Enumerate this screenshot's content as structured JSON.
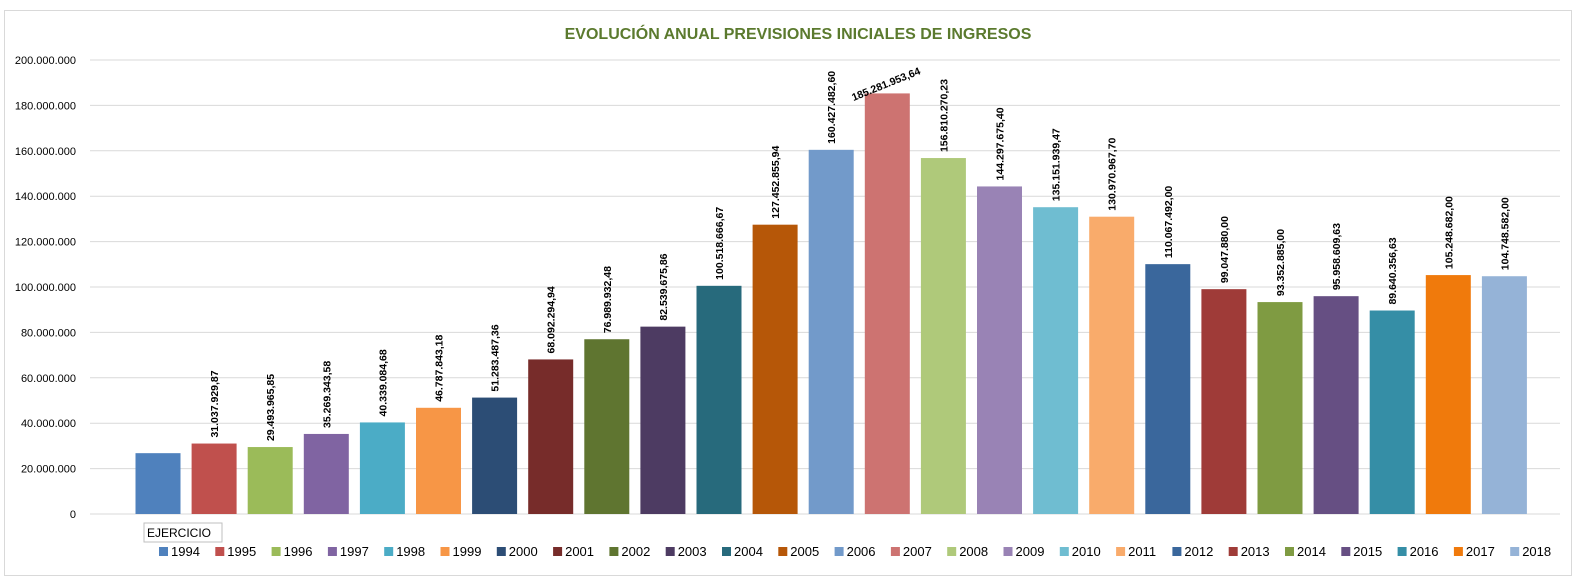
{
  "chart_data": {
    "type": "bar",
    "title": "EVOLUCIÓN ANUAL PREVISIONES INICIALES DE INGRESOS",
    "axis_field_label": "EJERCICIO",
    "ylim": [
      0,
      200000000
    ],
    "y_ticks": [
      0,
      20000000,
      40000000,
      60000000,
      80000000,
      100000000,
      120000000,
      140000000,
      160000000,
      180000000,
      200000000
    ],
    "y_tick_labels": [
      "0",
      "20.000.000",
      "40.000.000",
      "60.000.000",
      "80.000.000",
      "100.000.000",
      "120.000.000",
      "140.000.000",
      "160.000.000",
      "180.000.000",
      "200.000.000"
    ],
    "grid": true,
    "legend": "bottom",
    "series": [
      {
        "name": "1994",
        "value": 26800000,
        "label": "",
        "color": "#4f81bd"
      },
      {
        "name": "1995",
        "value": 31037929.87,
        "label": "31.037.929,87",
        "color": "#c0504d"
      },
      {
        "name": "1996",
        "value": 29493965.85,
        "label": "29.493.965,85",
        "color": "#9bbb59"
      },
      {
        "name": "1997",
        "value": 35269343.58,
        "label": "35.269.343,58",
        "color": "#8064a2"
      },
      {
        "name": "1998",
        "value": 40339084.68,
        "label": "40.339.084,68",
        "color": "#4bacc6"
      },
      {
        "name": "1999",
        "value": 46787843.18,
        "label": "46.787.843,18",
        "color": "#f79646"
      },
      {
        "name": "2000",
        "value": 51283487.36,
        "label": "51.283.487,36",
        "color": "#2c4d75"
      },
      {
        "name": "2001",
        "value": 68092294.94,
        "label": "68.092.294,94",
        "color": "#772c2a"
      },
      {
        "name": "2002",
        "value": 76989932.48,
        "label": "76.989.932,48",
        "color": "#5f7530"
      },
      {
        "name": "2003",
        "value": 82539675.86,
        "label": "82.539.675,86",
        "color": "#4d3b62"
      },
      {
        "name": "2004",
        "value": 100518666.67,
        "label": "100.518.666,67",
        "color": "#276a7c"
      },
      {
        "name": "2005",
        "value": 127452855.94,
        "label": "127.452.855,94",
        "color": "#b65708"
      },
      {
        "name": "2006",
        "value": 160427482.6,
        "label": "160.427.482,60",
        "color": "#729aca"
      },
      {
        "name": "2007",
        "value": 185281953.64,
        "label": "185.281.953,64",
        "color": "#cd7371"
      },
      {
        "name": "2008",
        "value": 156810270.23,
        "label": "156.810.270,23",
        "color": "#afc97a"
      },
      {
        "name": "2009",
        "value": 144297675.4,
        "label": "144.297.675,40",
        "color": "#9983b5"
      },
      {
        "name": "2010",
        "value": 135151939.47,
        "label": "135.151.939,47",
        "color": "#6fbdd1"
      },
      {
        "name": "2011",
        "value": 130970967.7,
        "label": "130.970.967,70",
        "color": "#f9ab6b"
      },
      {
        "name": "2012",
        "value": 110067492.0,
        "label": "110.067.492,00",
        "color": "#3a679c"
      },
      {
        "name": "2013",
        "value": 99047880.0,
        "label": "99.047.880,00",
        "color": "#9f3b38"
      },
      {
        "name": "2014",
        "value": 93352885.0,
        "label": "93.352.885,00",
        "color": "#7f9b42"
      },
      {
        "name": "2015",
        "value": 95958609.63,
        "label": "95.958.609,63",
        "color": "#664f83"
      },
      {
        "name": "2016",
        "value": 89640356.63,
        "label": "89.640.356,63",
        "color": "#358ea6"
      },
      {
        "name": "2017",
        "value": 105248682.0,
        "label": "105.248.682,00",
        "color": "#f07a0c"
      },
      {
        "name": "2018",
        "value": 104748582.0,
        "label": "104.748.582,00",
        "color": "#95b3d7"
      }
    ]
  }
}
